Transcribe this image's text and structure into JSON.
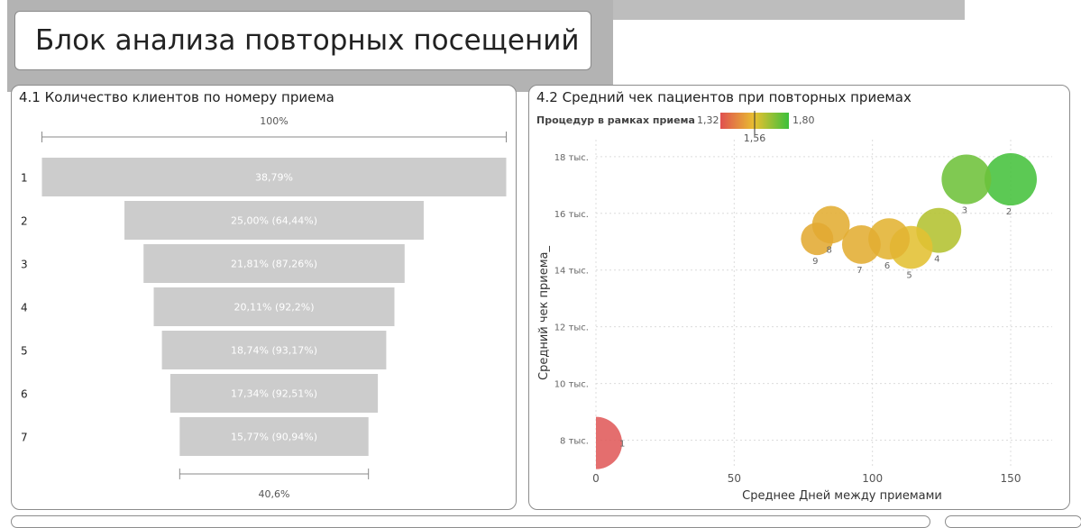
{
  "page_title": "Блок анализа повторных посещений",
  "funnel": {
    "title": "4.1 Количество клиентов по номеру приема",
    "top_label": "100%",
    "bottom_label": "40,6%",
    "chart_data": {
      "type": "funnel",
      "categories": [
        "1",
        "2",
        "3",
        "4",
        "5",
        "6",
        "7"
      ],
      "values": [
        38.79,
        25.0,
        21.81,
        20.11,
        18.74,
        17.34,
        15.77
      ],
      "labels": [
        "38,79%",
        "25,00% (64,44%)",
        "21,81% (87,26%)",
        "20,11% (92,2%)",
        "18,74% (93,17%)",
        "17,34% (92,51%)",
        "15,77% (90,94%)"
      ],
      "bar_color": "#cccccc"
    }
  },
  "bubble": {
    "title": "4.2 Средний чек пациентов при повторных приемах",
    "legend": {
      "label": "Процедур в рамках приема",
      "min_label": "1,32",
      "mid_label": "1,56",
      "max_label": "1,80",
      "min": 1.32,
      "mid": 1.56,
      "max": 1.8
    },
    "chart_data": {
      "type": "scatter",
      "xlabel": "Среднее Дней между приемами",
      "ylabel": "Средний чек приема_",
      "xlim": [
        0,
        165
      ],
      "ylim": [
        7,
        18.6
      ],
      "x_ticks": [
        {
          "value": 0,
          "label": "0"
        },
        {
          "value": 50,
          "label": "50"
        },
        {
          "value": 100,
          "label": "100"
        },
        {
          "value": 150,
          "label": "150"
        }
      ],
      "y_ticks": [
        {
          "value": 8,
          "label": "8 тыс."
        },
        {
          "value": 10,
          "label": "10 тыс."
        },
        {
          "value": 12,
          "label": "12 тыс."
        },
        {
          "value": 14,
          "label": "14 тыс."
        },
        {
          "value": 16,
          "label": "16 тыс."
        },
        {
          "value": 18,
          "label": "18 тыс."
        }
      ],
      "grid": true,
      "points": [
        {
          "label": "1",
          "x": 0,
          "y": 7.9,
          "size": 1.0,
          "color": "#e05a5a"
        },
        {
          "label": "2",
          "x": 150,
          "y": 17.2,
          "size": 1.0,
          "color": "#45c23c"
        },
        {
          "label": "3",
          "x": 134,
          "y": 17.2,
          "size": 0.95,
          "color": "#6ec23a"
        },
        {
          "label": "4",
          "x": 124,
          "y": 15.4,
          "size": 0.86,
          "color": "#b3c230"
        },
        {
          "label": "5",
          "x": 114,
          "y": 14.8,
          "size": 0.82,
          "color": "#e3c032"
        },
        {
          "label": "6",
          "x": 106,
          "y": 15.1,
          "size": 0.79,
          "color": "#e3b332"
        },
        {
          "label": "7",
          "x": 96,
          "y": 14.9,
          "size": 0.74,
          "color": "#e3ad32"
        },
        {
          "label": "8",
          "x": 85,
          "y": 15.6,
          "size": 0.72,
          "color": "#e3ad32"
        },
        {
          "label": "9",
          "x": 80,
          "y": 15.1,
          "size": 0.62,
          "color": "#e3aa32"
        }
      ]
    }
  },
  "colors": {
    "funnel_bar": "#cccccc",
    "grid": "#dcdcdc",
    "axis_text": "#666666"
  }
}
